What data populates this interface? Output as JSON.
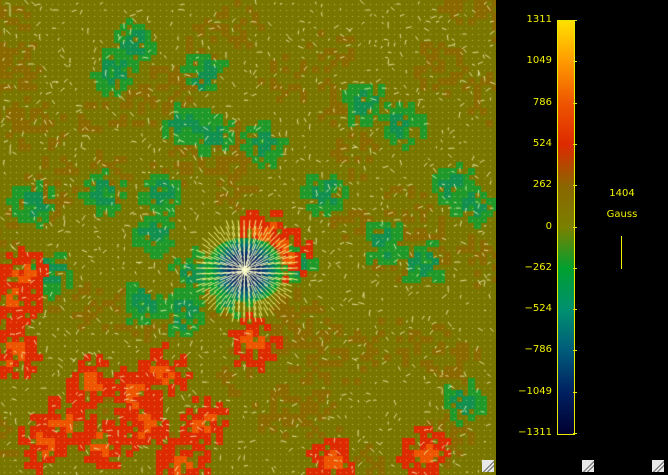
{
  "colorbar": {
    "ticks": [
      "1311",
      "1049",
      "786",
      "524",
      "262",
      "0",
      "−262",
      "−524",
      "−786",
      "−1049",
      "−1311"
    ],
    "colors": [
      "#ffe000",
      "#ff9900",
      "#ee5500",
      "#dd2a00",
      "#8a6600",
      "#7a8000",
      "#00a030",
      "#009070",
      "#005a7a",
      "#002060",
      "#000030"
    ]
  },
  "scale": {
    "value": "1404",
    "unit": "Gauss"
  },
  "colors": {
    "background_field": "#787800",
    "frame": "#000000",
    "label_text": "#f2f200"
  },
  "icons": [
    "resize-icon",
    "resize-icon",
    "resize-icon"
  ]
}
